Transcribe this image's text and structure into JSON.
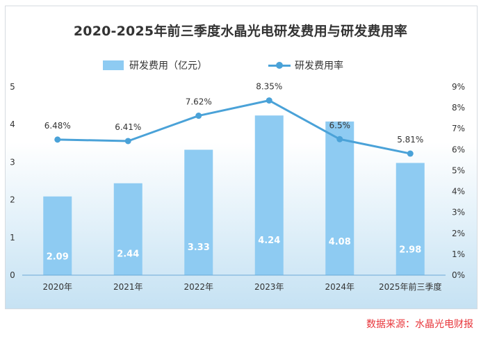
{
  "title": "2020-2025年前三季度水晶光电研发费用与研发费用率",
  "source": "数据来源：水晶光电财报",
  "colors": {
    "bar": "#8ecbf2",
    "line": "#4aa2d8",
    "source": "#e8353a",
    "bar_label": "#ffffff"
  },
  "chart_data": {
    "type": "bar+line",
    "categories": [
      "2020年",
      "2021年",
      "2022年",
      "2023年",
      "2024年",
      "2025年前三季度"
    ],
    "series": [
      {
        "name": "研发费用（亿元）",
        "type": "bar",
        "axis": "left",
        "values": [
          2.09,
          2.44,
          3.33,
          4.24,
          4.08,
          2.98
        ],
        "labels": [
          "2.09",
          "2.44",
          "3.33",
          "4.24",
          "4.08",
          "2.98"
        ]
      },
      {
        "name": "研发费用率",
        "type": "line",
        "axis": "right",
        "values": [
          6.48,
          6.41,
          7.62,
          8.35,
          6.5,
          5.81
        ],
        "labels": [
          "6.48%",
          "6.41%",
          "7.62%",
          "8.35%",
          "6.5%",
          "5.81%"
        ]
      }
    ],
    "y_left": {
      "ylim": [
        0,
        5
      ],
      "ticks": [
        "0",
        "1",
        "2",
        "3",
        "4",
        "5"
      ]
    },
    "y_right": {
      "ylim": [
        0,
        9
      ],
      "ticks": [
        "0%",
        "1%",
        "2%",
        "3%",
        "4%",
        "5%",
        "6%",
        "7%",
        "8%",
        "9%"
      ]
    },
    "legend_position": "top-center",
    "grid": false
  }
}
